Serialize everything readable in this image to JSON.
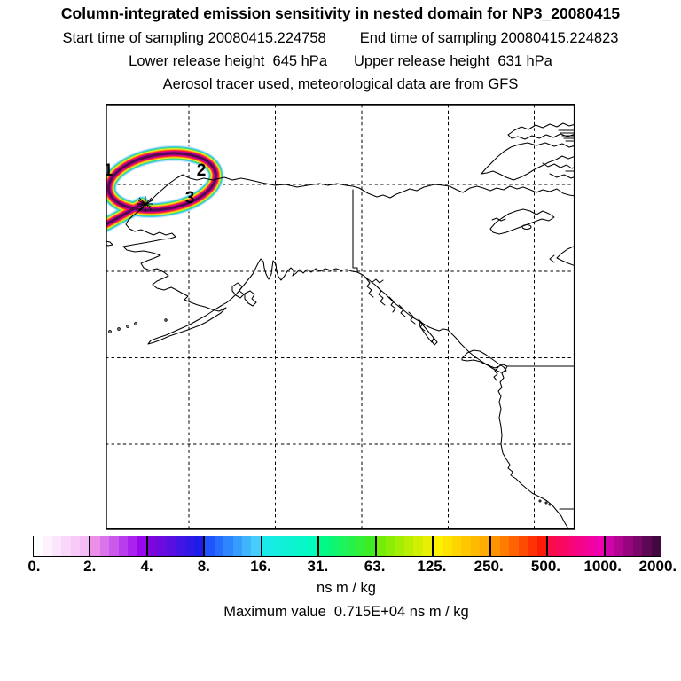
{
  "header": {
    "title": "Column-integrated emission sensitivity in nested domain for NP3_20080415",
    "start_time": "Start time of sampling 20080415.224758",
    "end_time": "End time of sampling 20080415.224823",
    "lower_release": "Lower release height  645 hPa",
    "upper_release": "Upper release height  631 hPa",
    "tracer_line": "Aerosol tracer used, meteorological data are from GFS"
  },
  "map": {
    "trajectory_labels": [
      {
        "label": "1"
      },
      {
        "label": "2"
      },
      {
        "label": "3"
      }
    ],
    "release_marker": "asterisk"
  },
  "plume": {
    "description": "elliptical ring-shaped plume in upper-left with tail extending to western map edge",
    "layers": [
      {
        "color": "#c9e9ff",
        "width": 18
      },
      {
        "color": "#41c7f2",
        "width": 15.6
      },
      {
        "color": "#3fe35c",
        "width": 13.4
      },
      {
        "color": "#f3e930",
        "width": 11.4
      },
      {
        "color": "#ffa012",
        "width": 9.4
      },
      {
        "color": "#ff321b",
        "width": 7.6
      },
      {
        "color": "#e80377",
        "width": 6
      },
      {
        "color": "#c003a3",
        "width": 4.6
      },
      {
        "color": "#55094f",
        "width": 3
      }
    ]
  },
  "colorbar": {
    "units": "ns m / kg",
    "max_label": "Maximum value  0.715E+04 ns m / kg",
    "ticks": [
      "0.",
      "2.",
      "4.",
      "8.",
      "16.",
      "31.",
      "63.",
      "125.",
      "250.",
      "500.",
      "1000.",
      "2000."
    ],
    "segments": [
      {
        "from": "0",
        "to": "2",
        "c0": "#ffffff",
        "c1": "#f5bdf5"
      },
      {
        "from": "2",
        "to": "4",
        "c0": "#ec8fe9",
        "c1": "#9907ef"
      },
      {
        "from": "4",
        "to": "8",
        "c0": "#7d06dd",
        "c1": "#1d1de9"
      },
      {
        "from": "8",
        "to": "16",
        "c0": "#1e55ff",
        "c1": "#46cdfb"
      },
      {
        "from": "16",
        "to": "31",
        "c0": "#18e9e9",
        "c1": "#02fcbd"
      },
      {
        "from": "31",
        "to": "63",
        "c0": "#01f987",
        "c1": "#3fec23"
      },
      {
        "from": "63",
        "to": "125",
        "c0": "#74ee08",
        "c1": "#e8ef02"
      },
      {
        "from": "125",
        "to": "250",
        "c0": "#fdf100",
        "c1": "#ffab00"
      },
      {
        "from": "250",
        "to": "500",
        "c0": "#ff9300",
        "c1": "#fe1a06"
      },
      {
        "from": "500",
        "to": "1000",
        "c0": "#fb0a4c",
        "c1": "#f001b0"
      },
      {
        "from": "1000",
        "to": "2000",
        "c0": "#cf03a7",
        "c1": "#41093f"
      }
    ]
  },
  "chart_data": {
    "type": "heatmap",
    "title": "Column-integrated emission sensitivity in nested domain for NP3_20080415",
    "subtitle_lines": [
      "Start time of sampling 20080415.224758    End time of sampling 20080415.224823",
      "Lower release height  645 hPa     Upper release height  631 hPa",
      "Aerosol tracer used, meteorological data are from GFS"
    ],
    "colorbar_ticks": [
      0,
      2,
      4,
      8,
      16,
      31,
      63,
      125,
      250,
      500,
      1000,
      2000
    ],
    "units": "ns m / kg",
    "max_value": "0.715E+04",
    "legend_position": "bottom",
    "grid": "dashed lat/lon grid, 5 vertical x 4 horizontal lines",
    "map_region": "Alaska and northwestern North America (Arctic coast, Aleutians, SE panhandle, west coast to Baja California, Canadian Arctic islands)",
    "plume": {
      "shape": "elliptical ring of high sensitivity in upper-left of domain with tail to west map edge",
      "color_order_outer_to_core": [
        "pale blue",
        "cyan",
        "green",
        "yellow",
        "orange",
        "red",
        "magenta",
        "purple core"
      ],
      "trajectory_point_labels": [
        "1",
        "2",
        "3"
      ],
      "release_point": "asterisk marker at lower-left of ring"
    }
  }
}
